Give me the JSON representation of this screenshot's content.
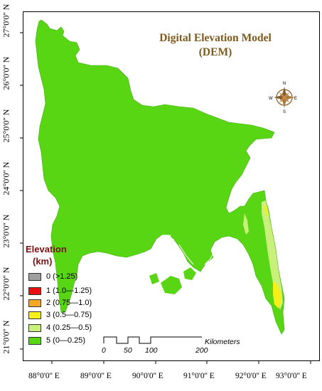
{
  "title_line1": "Digital Elevation Model",
  "title_line2": "(DEM)",
  "lat_labels": [
    "27°0'0'' N",
    "26°0'0'' N",
    "25°0'0'' N",
    "24°0'0'' N",
    "23°0'0'' N",
    "22°0'0'' N",
    "21°0'0'' N"
  ],
  "lon_labels": [
    "88°0'0'' E",
    "89°0'0'' E",
    "90°0'0'' E",
    "91°0'0'' E",
    "92°0'0'' E",
    "93°0'0'' E"
  ],
  "legend": {
    "title_line1": "Elevation",
    "title_line2": "(km)",
    "items": [
      {
        "label": "0 (>1.25)",
        "color": "#9e9e9e"
      },
      {
        "label": "1 (1.0—1.25)",
        "color": "#e81010"
      },
      {
        "label": "2 (0.75—1.0)",
        "color": "#f5a623"
      },
      {
        "label": "3 (0.5—0.75)",
        "color": "#f5ef1a"
      },
      {
        "label": "4 (0.25—0.5)",
        "color": "#c8f07a"
      },
      {
        "label": "5 (0—0.25)",
        "color": "#58d614"
      }
    ]
  },
  "scale": {
    "unit": "Kilometers",
    "ticks": [
      "0",
      "50",
      "100",
      "200"
    ]
  },
  "compass": {
    "n": "N",
    "e": "E",
    "s": "S",
    "w": "W"
  },
  "colors": {
    "land": "#58d614",
    "highland": "#c8f07a",
    "mid": "#f5ef1a",
    "title": "#7d5a1e",
    "legend_title": "#7a1010"
  }
}
